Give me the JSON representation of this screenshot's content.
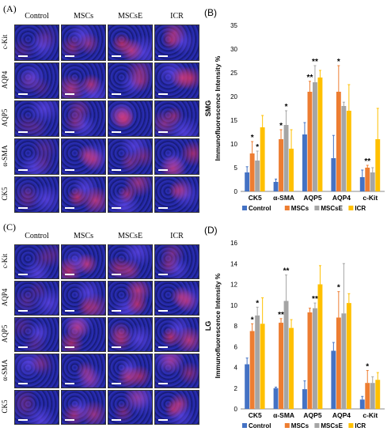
{
  "panels": {
    "A": {
      "label": "(A)"
    },
    "B": {
      "label": "(B)"
    },
    "C": {
      "label": "(C)"
    },
    "D": {
      "label": "(D)"
    }
  },
  "image_grid": {
    "columns": [
      "Control",
      "MSCs",
      "MSCsE",
      "ICR"
    ],
    "rows": [
      "c-Kit",
      "AQP4",
      "AQP5",
      "α-SMA",
      "CK5"
    ]
  },
  "colors": {
    "Control": "#4472c4",
    "MSCs": "#ed7d31",
    "MSCsE": "#a5a5a5",
    "ICR": "#ffc000"
  },
  "chart_data": [
    {
      "type": "bar",
      "panel": "(B)",
      "ylabel": "SMG Immunofluorescence Intensity %",
      "ylabel_top": "SMG",
      "ylabel_main": "Immunofluorescence Intensity %",
      "ylim": [
        0,
        35
      ],
      "yticks": [
        0,
        5,
        10,
        15,
        20,
        25,
        30,
        35
      ],
      "categories": [
        "CK5",
        "α-SMA",
        "AQP5",
        "AQP4",
        "c-Kit"
      ],
      "series": [
        {
          "name": "Control",
          "values": [
            4,
            2,
            12,
            7,
            3
          ],
          "errors": [
            1.2,
            0.6,
            2.5,
            4.8,
            1.5
          ]
        },
        {
          "name": "MSCs",
          "values": [
            8,
            11,
            21,
            21,
            5
          ],
          "errors": [
            2.5,
            2.0,
            2.2,
            5.5,
            0.5
          ]
        },
        {
          "name": "MSCsE",
          "values": [
            6.5,
            14,
            23,
            18,
            4
          ],
          "errors": [
            2.0,
            3.0,
            3.5,
            0.8,
            1.0
          ]
        },
        {
          "name": "ICR",
          "values": [
            13.5,
            9,
            24,
            17,
            11
          ],
          "errors": [
            2.5,
            4.0,
            1.5,
            5.5,
            6.5
          ]
        }
      ],
      "annotations": [
        "*",
        "*",
        "*",
        "*",
        "**",
        "**",
        "*",
        "**"
      ],
      "legend": {
        "position": "bottom",
        "items": [
          "Control",
          "MSCs",
          "MSCsE",
          "ICR"
        ]
      }
    },
    {
      "type": "bar",
      "panel": "(D)",
      "ylabel": "LG Immunofluorescence Intensity %",
      "ylabel_top": "LG",
      "ylabel_main": "Immunofluorescence Intensity %",
      "ylim": [
        0,
        16
      ],
      "yticks": [
        0,
        2,
        4,
        6,
        8,
        10,
        12,
        14,
        16
      ],
      "categories": [
        "CK5",
        "α-SMA",
        "AQP5",
        "AQP4",
        "c-Kit"
      ],
      "series": [
        {
          "name": "Control",
          "values": [
            4.3,
            2.0,
            1.9,
            5.6,
            0.9
          ],
          "errors": [
            0.6,
            0.1,
            0.8,
            0.8,
            0.3
          ]
        },
        {
          "name": "MSCs",
          "values": [
            7.5,
            8.3,
            9.3,
            8.8,
            2.5
          ],
          "errors": [
            0.7,
            0.4,
            0.4,
            2.5,
            1.2
          ]
        },
        {
          "name": "MSCsE",
          "values": [
            9.0,
            10.4,
            9.7,
            9.2,
            2.5
          ],
          "errors": [
            0.8,
            2.5,
            0.5,
            4.8,
            0.6
          ]
        },
        {
          "name": "ICR",
          "values": [
            8.2,
            7.8,
            12.0,
            10.2,
            2.8
          ],
          "errors": [
            2.5,
            0.8,
            1.8,
            0.9,
            0.7
          ]
        }
      ],
      "annotations": [
        "*",
        "*",
        "**",
        "**",
        "**",
        "*",
        "*"
      ],
      "legend": {
        "position": "bottom",
        "items": [
          "Control",
          "MSCs",
          "MSCsE",
          "ICR"
        ]
      }
    }
  ]
}
